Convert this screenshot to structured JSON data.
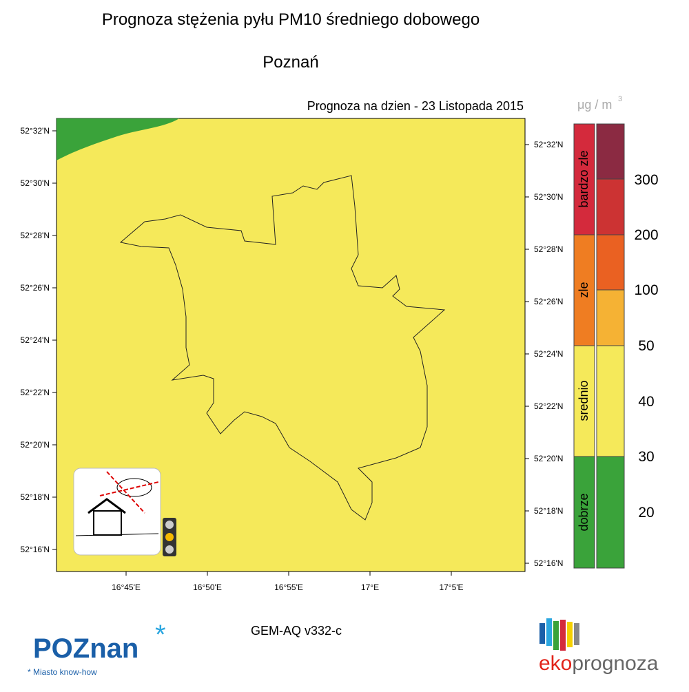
{
  "header": {
    "title": "Prognoza stężenia pyłu PM10 średniego dobowego",
    "city": "Poznań",
    "forecast_date": "Prognoza na dzien -  23 Listopada 2015"
  },
  "map": {
    "lat_labels": [
      "52°32'N",
      "52°30'N",
      "52°28'N",
      "52°26'N",
      "52°24'N",
      "52°22'N",
      "52°20'N",
      "52°18'N",
      "52°16'N"
    ],
    "lon_labels": [
      "16°45'E",
      "16°50'E",
      "16°55'E",
      "17°E",
      "17°5'E"
    ]
  },
  "legend": {
    "unit": "μg / m",
    "unit_exp": "3",
    "categories": [
      "bardzo zle",
      "zle",
      "srednio",
      "dobrze"
    ],
    "thresholds": [
      300,
      200,
      100,
      50,
      40,
      30,
      20
    ]
  },
  "footer": {
    "model": "GEM-AQ v332-c",
    "city_logo": "POZnan",
    "city_slogan": "Miasto know-how",
    "brand_prefix": "eko",
    "brand_suffix": "prognoza"
  }
}
